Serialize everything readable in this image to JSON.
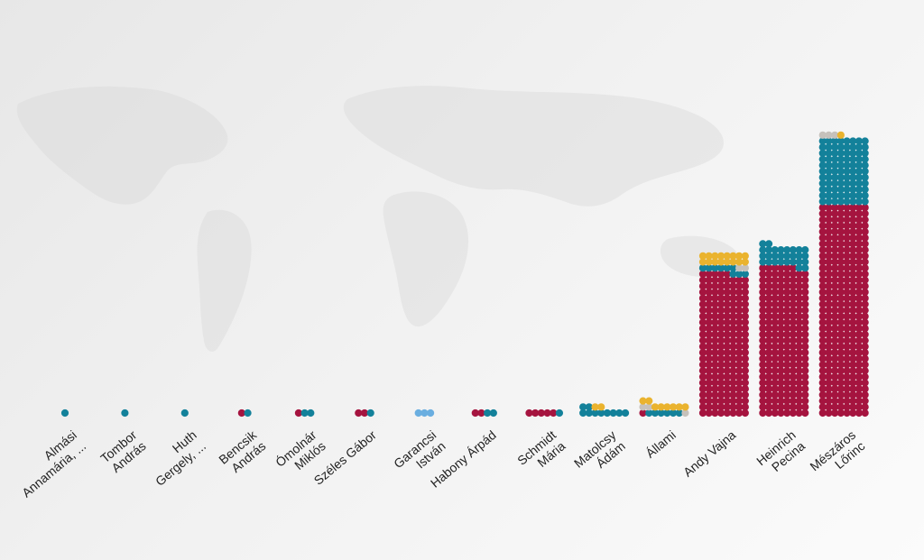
{
  "chart_data": {
    "type": "waffle-column",
    "colors": {
      "crimson": "#a5143f",
      "teal": "#13819a",
      "gold": "#eab32e",
      "gray": "#c6c1bb",
      "lightblue": "#6aaee0"
    },
    "categories": [
      {
        "label": [
          "Almási",
          "Annamária, ..."
        ],
        "counts": {
          "crimson": 0,
          "teal": 1,
          "gray": 0,
          "gold": 0,
          "lightblue": 0
        }
      },
      {
        "label": [
          "Tombor",
          "András"
        ],
        "counts": {
          "crimson": 0,
          "teal": 1,
          "gray": 0,
          "gold": 0,
          "lightblue": 0
        }
      },
      {
        "label": [
          "Huth",
          "Gergely, ..."
        ],
        "counts": {
          "crimson": 0,
          "teal": 1,
          "gray": 0,
          "gold": 0,
          "lightblue": 0
        }
      },
      {
        "label": [
          "Bencsik",
          "András"
        ],
        "counts": {
          "crimson": 1,
          "teal": 1,
          "gray": 0,
          "gold": 0,
          "lightblue": 0
        }
      },
      {
        "label": [
          "Ómolnár",
          "Miklós"
        ],
        "counts": {
          "crimson": 1,
          "teal": 2,
          "gray": 0,
          "gold": 0,
          "lightblue": 0
        }
      },
      {
        "label": [
          "Széles Gábor"
        ],
        "counts": {
          "crimson": 2,
          "teal": 1,
          "gray": 0,
          "gold": 0,
          "lightblue": 0
        }
      },
      {
        "label": [
          "Garancsi",
          "István"
        ],
        "counts": {
          "crimson": 0,
          "teal": 0,
          "gray": 0,
          "gold": 0,
          "lightblue": 3
        }
      },
      {
        "label": [
          "Habony Árpád"
        ],
        "counts": {
          "crimson": 2,
          "teal": 2,
          "gray": 0,
          "gold": 0,
          "lightblue": 0
        }
      },
      {
        "label": [
          "Schmidt",
          "Mária"
        ],
        "counts": {
          "crimson": 5,
          "teal": 1,
          "gray": 0,
          "gold": 0,
          "lightblue": 0
        }
      },
      {
        "label": [
          "Matolcsy",
          "Ádám"
        ],
        "counts": {
          "crimson": 0,
          "teal": 10,
          "gray": 0,
          "gold": 2,
          "lightblue": 0
        }
      },
      {
        "label": [
          "Állami"
        ],
        "counts": {
          "crimson": 1,
          "teal": 6,
          "gray": 3,
          "gold": 8,
          "lightblue": 0
        }
      },
      {
        "label": [
          "Andy Vajna"
        ],
        "counts": {
          "crimson": 189,
          "teal": 9,
          "gray": 2,
          "gold": 16,
          "lightblue": 0
        }
      },
      {
        "label": [
          "Heinrich",
          "Pecina"
        ],
        "counts": {
          "crimson": 198,
          "teal": 28,
          "gray": 0,
          "gold": 0,
          "lightblue": 0
        }
      },
      {
        "label": [
          "Mészáros",
          "Lőrinc"
        ],
        "counts": {
          "crimson": 280,
          "teal": 88,
          "gray": 3,
          "gold": 1,
          "lightblue": 0
        }
      }
    ],
    "stack_order": [
      "crimson",
      "teal",
      "gray",
      "gold",
      "lightblue"
    ],
    "title": "",
    "xlabel": "",
    "ylabel": "",
    "legend": "none",
    "grid": false
  }
}
